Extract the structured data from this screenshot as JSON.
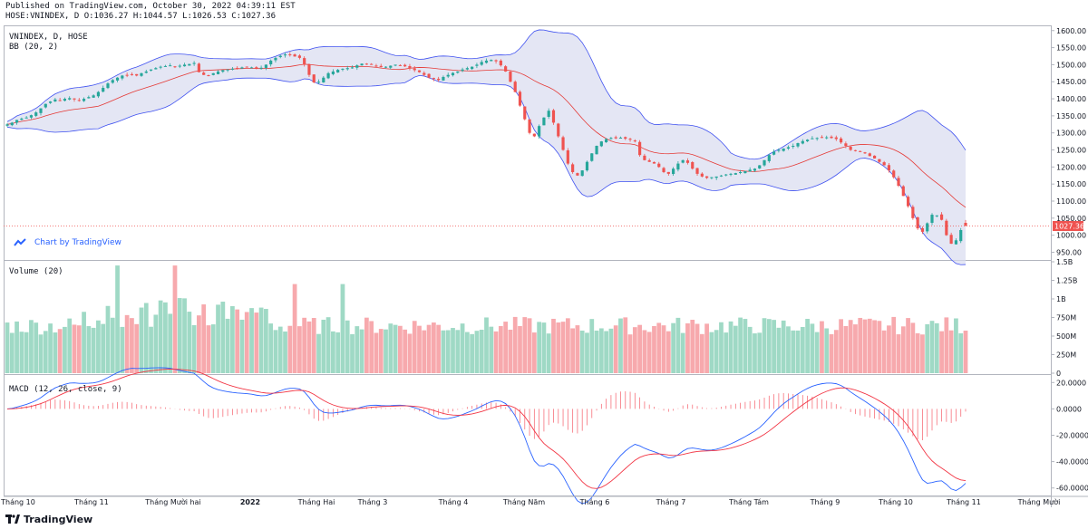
{
  "header": {
    "published": "Published on TradingView.com, October 30, 2022 04:39:11 EST",
    "symbol_line": "HOSE:VNINDEX, D O:1036.27 H:1044.57 L:1026.53 C:1027.36"
  },
  "chart_by": "Chart by TradingView",
  "footer_brand": "TradingView",
  "colors": {
    "up": "#26a69a",
    "down": "#ef5350",
    "up_vol": "#9fd9c5",
    "down_vol": "#f7a9ad",
    "bb_line": "#3f51f0",
    "bb_fill": "#d9dbef",
    "basis": "#e53935",
    "macd": "#2962ff",
    "signal": "#f23645",
    "grid": "#d1d4dc",
    "price_line": "#ef5350"
  },
  "chart_data": [
    {
      "type": "candlestick",
      "title": "VNINDEX, D, HOSE",
      "indicator_label": "BB (20, 2)",
      "ylim": [
        930,
        1610
      ],
      "y_ticks": [
        "1600.00",
        "1550.00",
        "1500.00",
        "1450.00",
        "1400.00",
        "1350.00",
        "1300.00",
        "1250.00",
        "1200.00",
        "1150.00",
        "1100.00",
        "1050.00",
        "1000.00",
        "950.00"
      ],
      "last_price_label": "1027.36",
      "last_price": 1027.36,
      "last_bar": {
        "open": 1036.27,
        "high": 1044.57,
        "low": 1026.53,
        "close": 1027.36
      },
      "close_series": [
        1325,
        1330,
        1338,
        1342,
        1345,
        1352,
        1360,
        1372,
        1385,
        1392,
        1398,
        1396,
        1400,
        1402,
        1398,
        1395,
        1400,
        1405,
        1410,
        1420,
        1432,
        1445,
        1455,
        1462,
        1468,
        1470,
        1472,
        1468,
        1475,
        1480,
        1486,
        1490,
        1494,
        1496,
        1498,
        1495,
        1497,
        1500,
        1502,
        1505,
        1478,
        1470,
        1468,
        1475,
        1480,
        1484,
        1486,
        1488,
        1490,
        1492,
        1493,
        1492,
        1489,
        1491,
        1500,
        1512,
        1520,
        1526,
        1530,
        1528,
        1524,
        1520,
        1500,
        1470,
        1448,
        1450,
        1462,
        1475,
        1480,
        1485,
        1488,
        1490,
        1492,
        1498,
        1503,
        1502,
        1500,
        1496,
        1493,
        1494,
        1497,
        1500,
        1498,
        1495,
        1490,
        1484,
        1478,
        1470,
        1462,
        1458,
        1455,
        1464,
        1470,
        1476,
        1480,
        1486,
        1490,
        1494,
        1500,
        1508,
        1512,
        1514,
        1510,
        1498,
        1480,
        1450,
        1420,
        1380,
        1340,
        1300,
        1290,
        1320,
        1345,
        1365,
        1330,
        1290,
        1250,
        1210,
        1185,
        1175,
        1190,
        1215,
        1240,
        1262,
        1275,
        1282,
        1285,
        1284,
        1286,
        1283,
        1280,
        1275,
        1235,
        1220,
        1215,
        1210,
        1200,
        1185,
        1180,
        1195,
        1210,
        1220,
        1212,
        1195,
        1180,
        1172,
        1168,
        1170,
        1172,
        1175,
        1178,
        1180,
        1182,
        1185,
        1188,
        1192,
        1195,
        1205,
        1220,
        1235,
        1245,
        1250,
        1254,
        1258,
        1262,
        1270,
        1276,
        1280,
        1284,
        1285,
        1286,
        1287,
        1285,
        1282,
        1272,
        1262,
        1250,
        1248,
        1245,
        1240,
        1232,
        1225,
        1215,
        1205,
        1190,
        1170,
        1145,
        1115,
        1085,
        1050,
        1020,
        1010,
        1035,
        1060,
        1058,
        1045,
        1000,
        975,
        985,
        1015,
        1027.36
      ],
      "x_ticks": [
        "Tháng 10",
        "Tháng 11",
        "Tháng Mười hai",
        "2022",
        "Tháng Hai",
        "Tháng 3",
        "Tháng 4",
        "Tháng Năm",
        "Tháng 6",
        "Tháng 7",
        "Tháng Tám",
        "Tháng 9",
        "Tháng 10",
        "Tháng 11",
        "Tháng Mười"
      ]
    },
    {
      "type": "bar",
      "title": "Volume (20)",
      "ylim": [
        0,
        1500000000
      ],
      "y_ticks": [
        "1.5B",
        "1.25B",
        "1B",
        "750M",
        "500M",
        "250M",
        "0"
      ]
    },
    {
      "type": "line",
      "title": "MACD (12, 26, close, 9)",
      "ylim": [
        -65,
        25
      ],
      "y_ticks": [
        "20.0000",
        "0.0000",
        "-20.0000",
        "-40.0000",
        "-60.0000"
      ]
    }
  ]
}
